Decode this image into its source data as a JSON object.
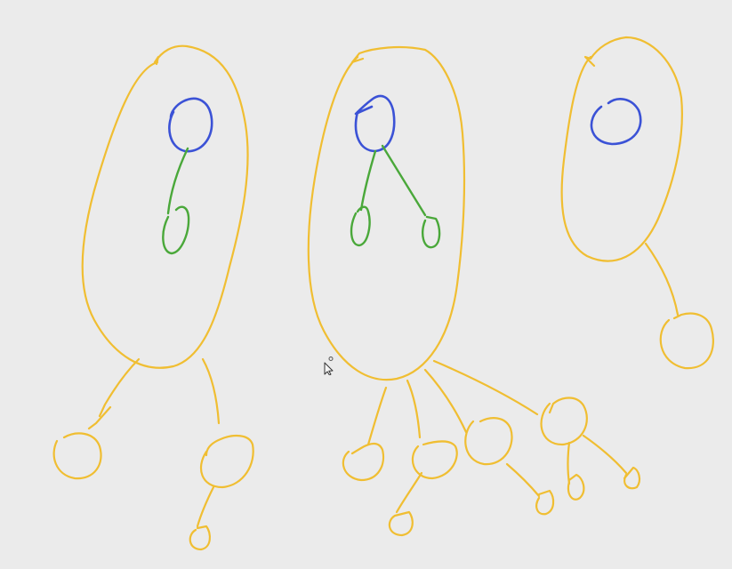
{
  "canvas": {
    "background": "#ebebeb"
  },
  "colors": {
    "yellow": "#f0be32",
    "blue": "#3b52d6",
    "green": "#4aa83a"
  },
  "cursor": {
    "icon": "arrow-pointer-icon"
  }
}
